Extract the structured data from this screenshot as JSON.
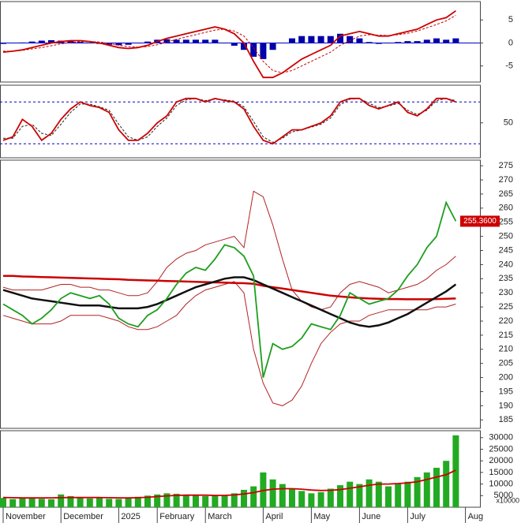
{
  "chart_data": [
    {
      "type": "indicator",
      "ylim": [
        -8.5,
        9
      ],
      "yticks": [
        -5,
        0,
        5
      ],
      "levels": [
        0
      ],
      "level_color": "#0000cc",
      "series": [
        {
          "style": "bar",
          "color": "#0000aa",
          "values": [
            -0.2,
            0,
            0.1,
            0.3,
            0.5,
            0.6,
            0.5,
            0.4,
            0.2,
            0,
            -0.2,
            -0.4,
            -0.5,
            -0.4,
            -0.1,
            0.3,
            0.7,
            0.8,
            0.7,
            0.7,
            0.7,
            0.7,
            0.7,
            0,
            -0.6,
            -1.5,
            -3,
            -3.5,
            -1.5,
            0,
            1,
            1.5,
            1.5,
            1.5,
            1.5,
            2,
            1.5,
            1,
            0.2,
            -0.2,
            -0.1,
            0.2,
            0.4,
            0.4,
            0.7,
            1,
            0.7,
            1,
            null
          ]
        },
        {
          "style": "dashed",
          "color": "#cc0000",
          "values": [
            -1.8,
            -1.8,
            -1.6,
            -1.3,
            -1,
            -0.6,
            -0.2,
            0.1,
            0.3,
            0.3,
            0.2,
            -0.1,
            -0.5,
            -0.8,
            -0.9,
            -0.8,
            -0.4,
            0.2,
            0.8,
            1.3,
            1.8,
            2.3,
            2.8,
            3,
            2.6,
            1.5,
            -1,
            -4,
            -6,
            -6.5,
            -6,
            -5,
            -4,
            -3,
            -2,
            -0.5,
            0.5,
            1.5,
            1.8,
            1.7,
            1.6,
            1.8,
            2.1,
            2.6,
            3.3,
            4,
            4.8,
            6,
            null
          ]
        },
        {
          "style": "line",
          "color": "#cc0000",
          "values": [
            -2,
            -1.8,
            -1.5,
            -1,
            -0.5,
            0,
            0.3,
            0.5,
            0.5,
            0.3,
            0,
            -0.5,
            -1,
            -1.2,
            -1,
            -0.5,
            0.3,
            1,
            1.5,
            2,
            2.5,
            3,
            3.5,
            3,
            2,
            0,
            -4,
            -7.5,
            -7.5,
            -6.5,
            -5,
            -3.5,
            -2.5,
            -1.5,
            -0.5,
            1.5,
            2,
            2.5,
            2,
            1.5,
            1.5,
            2,
            2.5,
            3,
            4,
            5,
            5.5,
            7,
            null
          ]
        }
      ]
    },
    {
      "type": "indicator",
      "ylim": [
        0,
        104
      ],
      "yticks": [
        50
      ],
      "levels": [
        20,
        80
      ],
      "level_color": "#0000cc",
      "series": [
        {
          "style": "dashed",
          "color": "#222222",
          "values": [
            28,
            28,
            45,
            48,
            35,
            32,
            48,
            65,
            77,
            77,
            73,
            68,
            48,
            30,
            25,
            30,
            45,
            57,
            75,
            83,
            85,
            82,
            84,
            83,
            81,
            73,
            52,
            30,
            22,
            28,
            37,
            40,
            44,
            48,
            57,
            76,
            84,
            85,
            78,
            72,
            74,
            78,
            68,
            62,
            68,
            82,
            85,
            82,
            null
          ]
        },
        {
          "style": "line",
          "color": "#cc0000",
          "values": [
            25,
            30,
            55,
            45,
            25,
            35,
            55,
            70,
            80,
            75,
            72,
            65,
            40,
            25,
            25,
            35,
            50,
            60,
            80,
            85,
            85,
            80,
            85,
            82,
            80,
            70,
            45,
            25,
            20,
            30,
            40,
            40,
            45,
            50,
            60,
            80,
            85,
            85,
            75,
            70,
            75,
            80,
            65,
            60,
            70,
            85,
            85,
            80,
            null
          ]
        }
      ]
    },
    {
      "type": "indicator",
      "ylim": [
        182,
        277
      ],
      "yticks": [
        185,
        190,
        195,
        200,
        205,
        210,
        215,
        220,
        225,
        230,
        235,
        240,
        245,
        250,
        255,
        260,
        265,
        270,
        275
      ],
      "price_tag": {
        "value": 255.36,
        "label": "255.3600"
      },
      "tag_color": "#cc0000",
      "series": [
        {
          "style": "thin",
          "color": "#b22222",
          "values": [
            232,
            231,
            231,
            231,
            231,
            232,
            233,
            233,
            232,
            232,
            231,
            231,
            230,
            229,
            229,
            230,
            234,
            239,
            242,
            244,
            245,
            247,
            248,
            249,
            250,
            246,
            266,
            264,
            254,
            242,
            231,
            227,
            225,
            224,
            225,
            230,
            233,
            234,
            233,
            232,
            230,
            231,
            232,
            233,
            235,
            238,
            240,
            243,
            null
          ]
        },
        {
          "style": "thin",
          "color": "#b22222",
          "values": [
            222,
            221,
            220,
            219,
            219,
            219,
            220,
            222,
            222,
            222,
            222,
            221,
            220,
            218,
            217,
            217,
            218,
            220,
            222,
            226,
            229,
            231,
            232,
            233,
            234,
            230,
            210,
            198,
            191,
            190,
            192,
            197,
            205,
            212,
            216,
            219,
            220,
            220,
            222,
            223,
            224,
            224,
            224,
            224,
            224,
            225,
            225,
            226,
            null
          ]
        },
        {
          "style": "thick",
          "color": "#cc0000",
          "values": [
            236,
            236,
            235.8,
            235.7,
            235.6,
            235.5,
            235.4,
            235.3,
            235.2,
            235.1,
            235,
            234.9,
            234.8,
            234.6,
            234.5,
            234.4,
            234.3,
            234.2,
            234.1,
            234,
            233.9,
            233.8,
            233.7,
            233.6,
            233.5,
            233.4,
            233.2,
            232.5,
            232,
            231.5,
            231,
            230.5,
            230,
            229.5,
            229,
            228.7,
            228.4,
            228.2,
            228,
            227.9,
            227.8,
            227.8,
            227.7,
            227.7,
            227.7,
            227.8,
            227.9,
            228,
            null
          ]
        },
        {
          "style": "thick",
          "color": "#111111",
          "values": [
            231,
            230,
            229,
            228,
            227.5,
            227,
            226.5,
            226,
            225.5,
            225.5,
            225.5,
            225,
            224.5,
            224.5,
            224.5,
            225,
            226,
            227.5,
            229,
            230.5,
            232,
            233,
            234,
            235,
            235.5,
            235.5,
            234.5,
            233,
            231.5,
            230,
            228.5,
            227,
            225.5,
            224,
            222.5,
            221,
            219.5,
            218.5,
            218,
            218.5,
            219.5,
            221,
            222.5,
            224.5,
            226.5,
            228.5,
            230.5,
            233,
            null
          ]
        },
        {
          "style": "line",
          "color": "#1e9e1e",
          "values": [
            226,
            224,
            222,
            219,
            221,
            224,
            228,
            230,
            229,
            228,
            229,
            226,
            221,
            219,
            218,
            222,
            224,
            228,
            233,
            237,
            239,
            238,
            242,
            247,
            246,
            243,
            236,
            200,
            212,
            210,
            211,
            214,
            219,
            218,
            217,
            222,
            230,
            228,
            226,
            227,
            228,
            231,
            236,
            240,
            246,
            250,
            262,
            255.36,
            null
          ]
        }
      ]
    },
    {
      "type": "indicator",
      "ylim": [
        0,
        33000
      ],
      "yticks": [
        5000,
        10000,
        15000,
        20000,
        25000,
        30000
      ],
      "unit_note": "x10000",
      "categories": [
        "November",
        null,
        null,
        null,
        null,
        null,
        "December",
        null,
        null,
        null,
        null,
        null,
        "2025",
        null,
        null,
        null,
        "February",
        null,
        null,
        null,
        null,
        "March",
        null,
        null,
        null,
        null,
        null,
        "April",
        null,
        null,
        null,
        null,
        "May",
        null,
        null,
        null,
        null,
        "June",
        null,
        null,
        null,
        null,
        "July",
        null,
        null,
        null,
        null,
        null,
        "Aug"
      ],
      "series": [
        {
          "style": "bar",
          "color": "#22aa22",
          "values": [
            4000,
            3500,
            3800,
            4200,
            3600,
            3400,
            5500,
            4800,
            4200,
            3800,
            4000,
            3600,
            3500,
            4200,
            4500,
            5000,
            5500,
            6000,
            5800,
            5200,
            5000,
            4800,
            5200,
            5000,
            6000,
            7500,
            9000,
            15000,
            12000,
            10000,
            8000,
            7000,
            6000,
            6500,
            8000,
            9500,
            11000,
            10000,
            12000,
            11000,
            9000,
            10000,
            11000,
            13000,
            15000,
            17000,
            20000,
            31000,
            null
          ]
        },
        {
          "style": "line",
          "color": "#cc0000",
          "values": [
            4200,
            4100,
            4000,
            4000,
            4000,
            4000,
            4100,
            4200,
            4200,
            4200,
            4200,
            4100,
            4000,
            4000,
            4100,
            4300,
            4600,
            4900,
            5100,
            5200,
            5200,
            5200,
            5100,
            5100,
            5300,
            5700,
            6300,
            7200,
            7800,
            8000,
            8000,
            7800,
            7400,
            7200,
            7300,
            7600,
            8200,
            8800,
            9500,
            10000,
            10000,
            10200,
            10500,
            11000,
            12000,
            13000,
            14000,
            16000,
            null
          ]
        }
      ]
    }
  ]
}
